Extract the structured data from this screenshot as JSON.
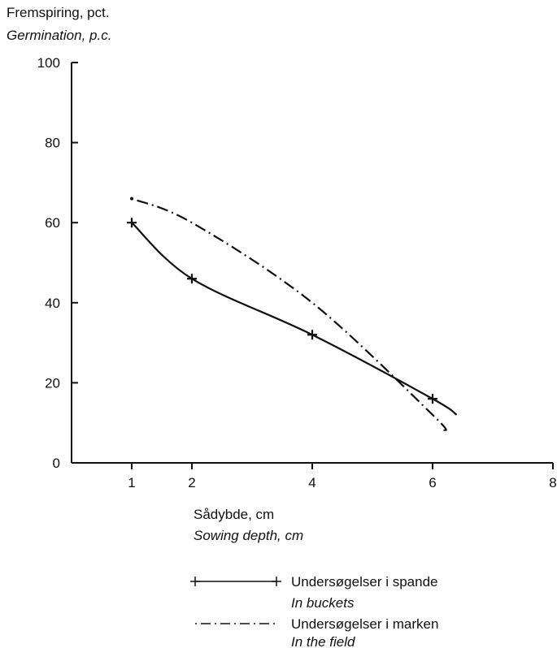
{
  "chart_data": {
    "type": "line",
    "ylabel": "Fremspiring, pct.",
    "ylabel_en": "Germination, p.c.",
    "xlabel": "Sådybde, cm",
    "xlabel_en": "Sowing depth, cm",
    "xlim": [
      0,
      8
    ],
    "ylim": [
      0,
      100
    ],
    "x_ticks": [
      1,
      2,
      4,
      6,
      8
    ],
    "y_ticks": [
      0,
      20,
      40,
      60,
      80,
      100
    ],
    "series": [
      {
        "name": "Undersøgelser i spande",
        "name_en": "In buckets",
        "markers": "+",
        "line": "solid",
        "x": [
          1,
          2,
          4,
          6,
          6.4
        ],
        "y": [
          60,
          46,
          32,
          16,
          12
        ]
      },
      {
        "name": "Undersøgelser i marken",
        "name_en": "In the field",
        "markers": "none",
        "line": "dash-dot",
        "x": [
          1,
          2,
          4,
          6,
          6.2
        ],
        "y": [
          66,
          60,
          40,
          12,
          8
        ]
      }
    ],
    "grid": false,
    "legend": "bottom"
  }
}
